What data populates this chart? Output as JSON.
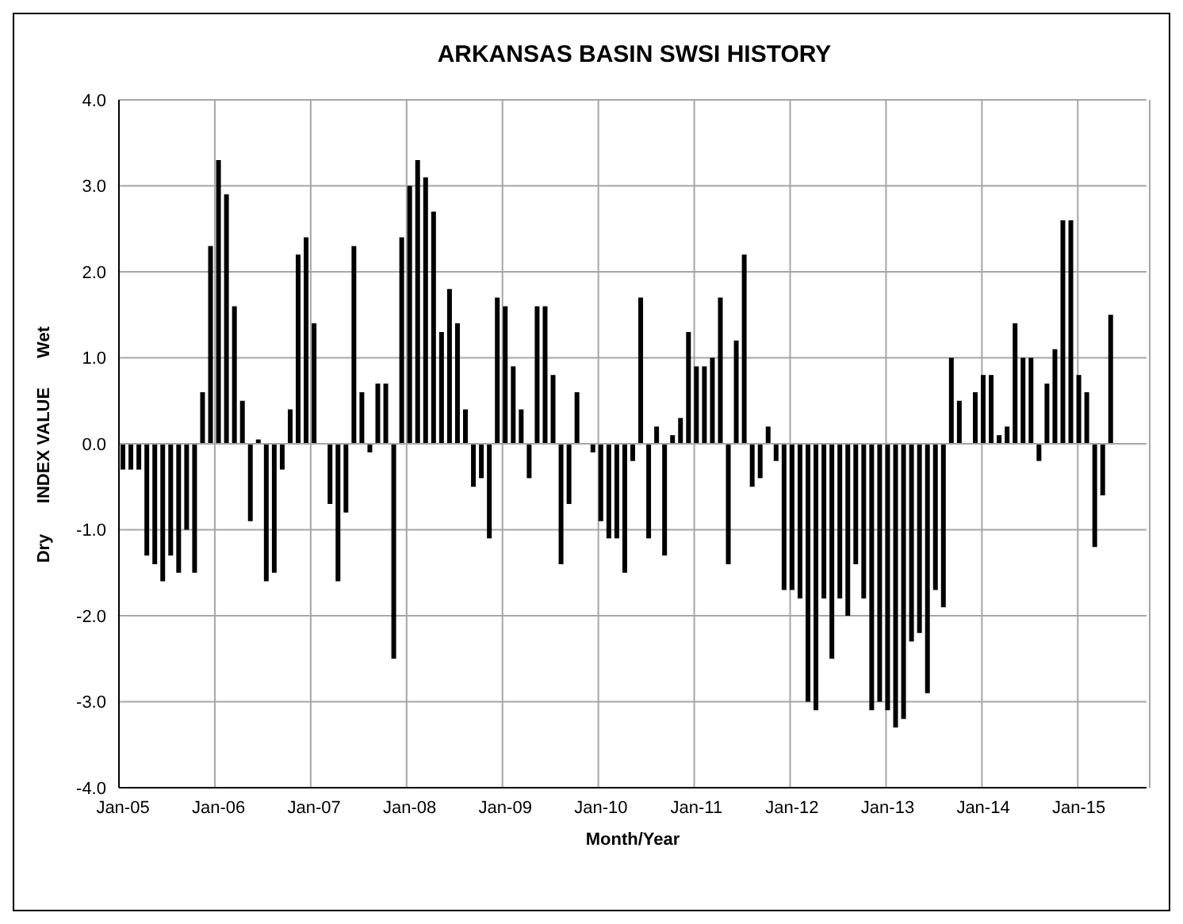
{
  "chart_data": {
    "type": "bar",
    "title": "ARKANSAS BASIN SWSI HISTORY",
    "xlabel": "Month/Year",
    "ylabel": "INDEX VALUE",
    "annotations": [
      "Wet",
      "Dry"
    ],
    "categories": [
      "Jan-05",
      null,
      null,
      null,
      null,
      null,
      null,
      null,
      null,
      null,
      null,
      null,
      "Jan-06",
      null,
      null,
      null,
      null,
      null,
      null,
      null,
      null,
      null,
      null,
      null,
      "Jan-07",
      null,
      null,
      null,
      null,
      null,
      null,
      null,
      null,
      null,
      null,
      null,
      "Jan-08",
      null,
      null,
      null,
      null,
      null,
      null,
      null,
      null,
      null,
      null,
      null,
      "Jan-09",
      null,
      null,
      null,
      null,
      null,
      null,
      null,
      null,
      null,
      null,
      null,
      "Jan-10",
      null,
      null,
      null,
      null,
      null,
      null,
      null,
      null,
      null,
      null,
      null,
      "Jan-11",
      null,
      null,
      null,
      null,
      null,
      null,
      null,
      null,
      null,
      null,
      null,
      "Jan-12",
      null,
      null,
      null,
      null,
      null,
      null,
      null,
      null,
      null,
      null,
      null,
      "Jan-13",
      null,
      null,
      null,
      null,
      null,
      null,
      null,
      null,
      null,
      null,
      null,
      "Jan-14",
      null,
      null,
      null,
      null,
      null,
      null,
      null,
      null,
      null,
      null,
      null,
      "Jan-15",
      null,
      null,
      null,
      null,
      null,
      null,
      null,
      null
    ],
    "values": [
      -0.3,
      -0.3,
      -0.3,
      -1.3,
      -1.4,
      -1.6,
      -1.3,
      -1.5,
      -1.0,
      -1.5,
      0.6,
      2.3,
      3.3,
      2.9,
      1.6,
      0.5,
      -0.9,
      0.05,
      -1.6,
      -1.5,
      -0.3,
      0.4,
      2.2,
      2.4,
      1.4,
      0,
      -0.7,
      -1.6,
      -0.8,
      2.3,
      0.6,
      -0.1,
      0.7,
      0.7,
      -2.5,
      2.4,
      3.0,
      3.3,
      3.1,
      2.7,
      1.3,
      1.8,
      1.4,
      0.4,
      -0.5,
      -0.4,
      -1.1,
      1.7,
      1.6,
      0.9,
      0.4,
      -0.4,
      1.6,
      1.6,
      0.8,
      -1.4,
      -0.7,
      0.6,
      0,
      -0.1,
      -0.9,
      -1.1,
      -1.1,
      -1.5,
      -0.2,
      1.7,
      -1.1,
      0.2,
      -1.3,
      0.1,
      0.3,
      1.3,
      0.9,
      0.9,
      1.0,
      1.7,
      -1.4,
      1.2,
      2.2,
      -0.5,
      -0.4,
      0.2,
      -0.2,
      -1.7,
      -1.7,
      -1.8,
      -3.0,
      -3.1,
      -1.8,
      -2.5,
      -1.8,
      -2.0,
      -1.4,
      -1.8,
      -3.1,
      -3.0,
      -3.1,
      -3.3,
      -3.2,
      -2.3,
      -2.2,
      -2.9,
      -1.7,
      -1.9,
      1.0,
      0.5,
      0,
      0.6,
      0.8,
      0.8,
      0.1,
      0.2,
      1.4,
      1.0,
      1.0,
      -0.2,
      0.7,
      1.1,
      2.6,
      2.6,
      0.8,
      0.6,
      -1.2,
      -0.6,
      1.5,
      null,
      null,
      null,
      null
    ],
    "color": "#000000",
    "ylim": [
      -4,
      4
    ],
    "yticks": [
      {
        "value": -4,
        "label": "-4.0"
      },
      {
        "value": -3,
        "label": "-3.0"
      },
      {
        "value": -2,
        "label": "-2.0"
      },
      {
        "value": -1,
        "label": "-1.0"
      },
      {
        "value": 0,
        "label": "0.0"
      },
      {
        "value": 1,
        "label": "1.0"
      },
      {
        "value": 2,
        "label": "2.0"
      },
      {
        "value": 3,
        "label": "3.0"
      },
      {
        "value": 4,
        "label": "4.0"
      }
    ],
    "grid": true
  }
}
